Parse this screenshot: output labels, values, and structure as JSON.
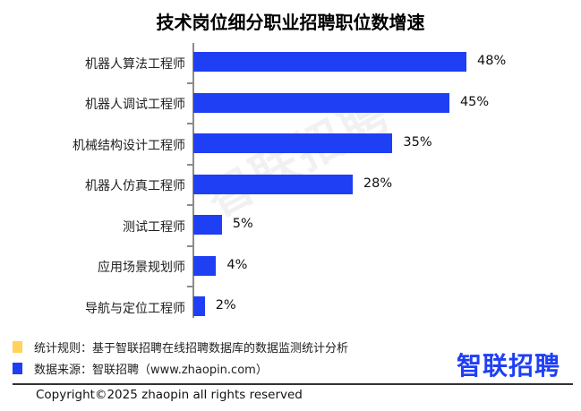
{
  "chart_data": {
    "type": "bar",
    "orientation": "horizontal",
    "title": "技术岗位细分职业招聘职位数增速",
    "categories": [
      "机器人算法工程师",
      "机器人调试工程师",
      "机械结构设计工程师",
      "机器人仿真工程师",
      "测试工程师",
      "应用场景规划师",
      "导航与定位工程师"
    ],
    "values": [
      48,
      45,
      35,
      28,
      5,
      4,
      2
    ],
    "value_labels": [
      "48%",
      "45%",
      "35%",
      "28%",
      "5%",
      "4%",
      "2%"
    ],
    "xlabel": "",
    "ylabel": "",
    "unit": "%",
    "grid": false,
    "bar_color": "#1f3ff5"
  },
  "header": {
    "title": "技术岗位细分职业招聘职位数增速"
  },
  "watermark": "智联招聘",
  "legend": [
    {
      "color": "#ffd35c",
      "text": "统计规则：基于智联招聘在线招聘数据库的数据监测统计分析"
    },
    {
      "color": "#1f3ff5",
      "text": "数据来源：智联招聘（www.zhaopin.com）"
    }
  ],
  "logo": {
    "text": "智联招聘"
  },
  "footer": {
    "copyright": "Copyright©2025 zhaopin all rights reserved"
  }
}
